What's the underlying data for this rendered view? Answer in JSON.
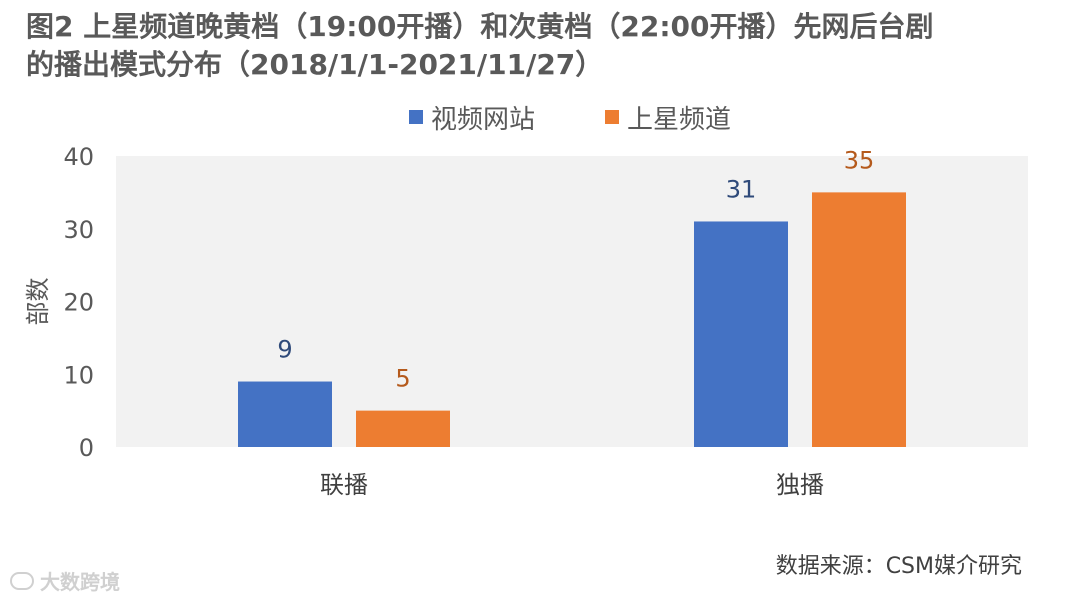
{
  "title_line1": "图2 上星频道晚黄档（19:00开播）和次黄档（22:00开播）先网后台剧",
  "title_line2": "的播出模式分布（2018/1/1-2021/11/27）",
  "source": "数据来源：CSM媒介研究",
  "watermark": "大数跨境",
  "chart_data": {
    "type": "bar",
    "categories": [
      "联播",
      "独播"
    ],
    "series": [
      {
        "name": "视频网站",
        "values": [
          9,
          31
        ],
        "color": "#4472C4",
        "label_color": "#2F4A7A"
      },
      {
        "name": "上星频道",
        "values": [
          5,
          35
        ],
        "color": "#ED7D31",
        "label_color": "#B55A1C"
      }
    ],
    "ylabel": "部数",
    "xlabel": "",
    "ylim": [
      0,
      40
    ],
    "yticks": [
      0,
      10,
      20,
      30,
      40
    ],
    "grid": false,
    "legend": "top",
    "plot_background": "#F2F2F2"
  }
}
